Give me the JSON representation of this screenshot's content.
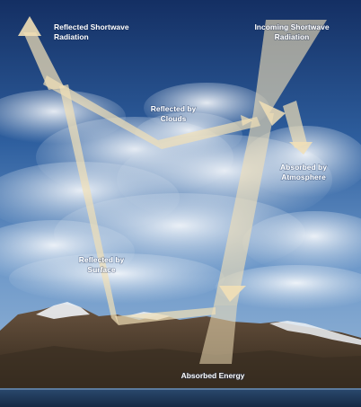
{
  "labels": {
    "reflected_shortwave_line1": "Reflected Shortwave",
    "reflected_shortwave_line2": "Radiation",
    "incoming_shortwave_line1": "Incoming Shortwave",
    "incoming_shortwave_line2": "Radiation",
    "reflected_by_clouds_line1": "Reflected by",
    "reflected_by_clouds_line2": "Clouds",
    "absorbed_by_atmosphere_line1": "Absorbed by",
    "absorbed_by_atmosphere_line2": "Atmosphere",
    "reflected_by_surface_line1": "Reflected by",
    "reflected_by_surface_line2": "Surface",
    "absorbed_energy": "Absorbed Energy"
  },
  "colors": {
    "arrow_fill": "#f1dfb6",
    "sky_top": "#15356b",
    "sky_mid": "#3f74b6",
    "mountain_dark": "#4a3a2a",
    "snow": "#eef2f6",
    "water": "#1e3552"
  }
}
